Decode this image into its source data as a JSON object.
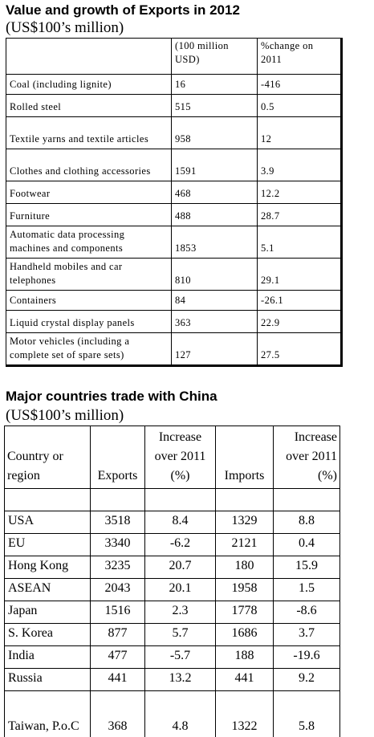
{
  "export_table": {
    "title": "Value and growth of Exports in 2012",
    "subtitle": "(US$100’s million)",
    "columns": [
      "(100 million USD)",
      "%change on 2011"
    ],
    "rows": [
      [
        "Coal (including lignite)",
        "16",
        "-416"
      ],
      [
        "Rolled steel",
        "515",
        "0.5"
      ],
      [
        "Textile yarns and textile articles",
        "958",
        "12"
      ],
      [
        "Clothes and clothing accessories",
        "1591",
        "3.9"
      ],
      [
        "Footwear",
        "468",
        "12.2"
      ],
      [
        "Furniture",
        "488",
        "28.7"
      ],
      [
        "Automatic data processing machines and components",
        "1853",
        "5.1"
      ],
      [
        "Handheld mobiles and car telephones",
        "810",
        "29.1"
      ],
      [
        "Containers",
        "84",
        "-26.1"
      ],
      [
        "Liquid crystal display panels",
        "363",
        "22.9"
      ],
      [
        "Motor vehicles (including a complete set of spare sets)",
        "127",
        "27.5"
      ]
    ]
  },
  "trade_table": {
    "title": "Major countries trade with China",
    "subtitle": "(US$100’s million)",
    "columns": [
      "Country or region",
      "Exports",
      "Increase over 2011 (%)",
      "Imports",
      "Increase over 2011 (%)"
    ],
    "rows": [
      [
        "USA",
        "3518",
        "8.4",
        "1329",
        "8.8"
      ],
      [
        "EU",
        "3340",
        "-6.2",
        "2121",
        "0.4"
      ],
      [
        "Hong Kong",
        "3235",
        "20.7",
        "180",
        "15.9"
      ],
      [
        "ASEAN",
        "2043",
        "20.1",
        "1958",
        "1.5"
      ],
      [
        "Japan",
        "1516",
        "2.3",
        "1778",
        "-8.6"
      ],
      [
        "S. Korea",
        "877",
        "5.7",
        "1686",
        "3.7"
      ],
      [
        "India",
        "477",
        "-5.7",
        "188",
        "-19.6"
      ],
      [
        "Russia",
        "441",
        "13.2",
        "441",
        "9.2"
      ],
      [
        "Taiwan, P.o.C",
        "368",
        "4.8",
        "1322",
        "5.8"
      ]
    ]
  }
}
